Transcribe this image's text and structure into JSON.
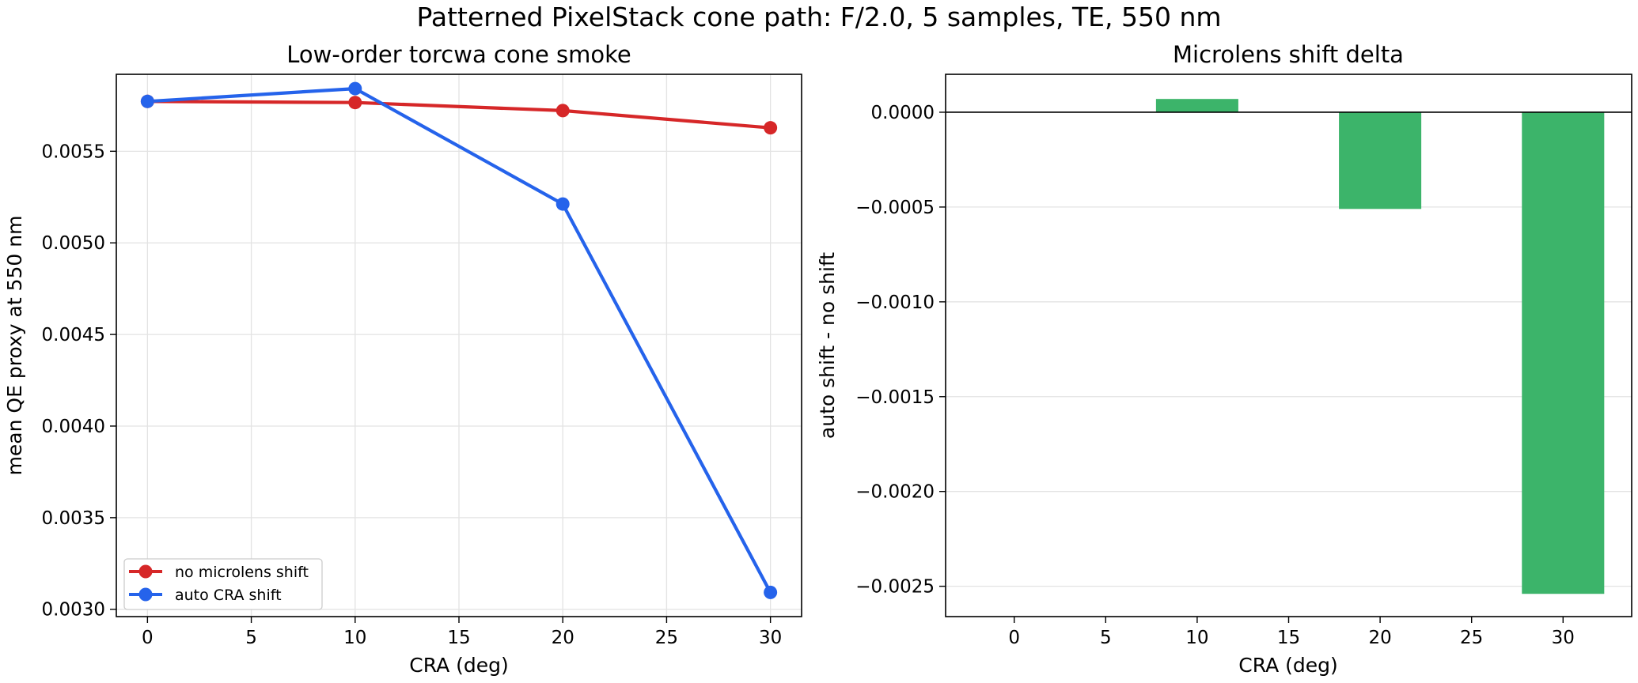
{
  "figure": {
    "title": "Patterned PixelStack cone path: F/2.0, 5 samples, TE, 550 nm"
  },
  "colors": {
    "no_shift": "#d62728",
    "auto_shift": "#2563eb",
    "delta_bar": "#3cb46a",
    "grid": "#e3e3e3",
    "axis": "#000000"
  },
  "chart_data": [
    {
      "type": "line",
      "title": "Low-order torcwa cone smoke",
      "xlabel": "CRA (deg)",
      "ylabel": "mean QE proxy at 550 nm",
      "x": [
        0,
        10,
        20,
        30
      ],
      "xlim": [
        -1.5,
        31.5
      ],
      "ylim": [
        0.00296,
        0.00592
      ],
      "xticks": [
        "0",
        "5",
        "10",
        "15",
        "20",
        "25",
        "30"
      ],
      "yticks": [
        "0.0030",
        "0.0035",
        "0.0040",
        "0.0045",
        "0.0050",
        "0.0055"
      ],
      "grid": true,
      "legend_position": "lower-left",
      "series": [
        {
          "name": "no microlens shift",
          "values": [
            0.005772,
            0.005766,
            0.005722,
            0.005628
          ]
        },
        {
          "name": "auto CRA shift",
          "values": [
            0.005772,
            0.005842,
            0.005212,
            0.003092
          ]
        }
      ]
    },
    {
      "type": "bar",
      "title": "Microlens shift delta",
      "xlabel": "CRA (deg)",
      "ylabel": "auto shift - no shift",
      "x": [
        0,
        10,
        20,
        30
      ],
      "values": [
        0.0,
        7e-05,
        -0.00051,
        -0.00254
      ],
      "bar_width": 4.5,
      "xlim": [
        -3.75,
        33.75
      ],
      "ylim": [
        -0.00266,
        0.0002
      ],
      "xticks": [
        "0",
        "5",
        "10",
        "15",
        "20",
        "25",
        "30"
      ],
      "yticks": [
        "0.0000",
        "−0.0005",
        "−0.0010",
        "−0.0015",
        "−0.0020",
        "−0.0025"
      ],
      "grid": true,
      "zero_line": true
    }
  ]
}
